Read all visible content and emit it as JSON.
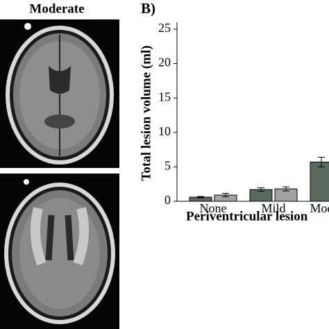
{
  "panel_a_title": "Moderate",
  "chart_data": {
    "type": "bar",
    "panel_label": "B)",
    "ylabel": "Total lesion volume (ml)",
    "xlabel": "Periventricular lesion",
    "categories": [
      "None",
      "Mild",
      "Moderate"
    ],
    "series": [
      {
        "color": "#5b6a5f",
        "values": [
          0.6,
          1.7,
          5.7
        ],
        "errors": [
          0.1,
          0.25,
          0.7
        ]
      },
      {
        "color": "#a3a3a3",
        "values": [
          0.9,
          1.8,
          null
        ],
        "errors": [
          0.25,
          0.3,
          null
        ]
      }
    ],
    "ylim": [
      0,
      26
    ],
    "yticks": [
      0,
      5,
      10,
      15,
      20,
      25
    ]
  }
}
